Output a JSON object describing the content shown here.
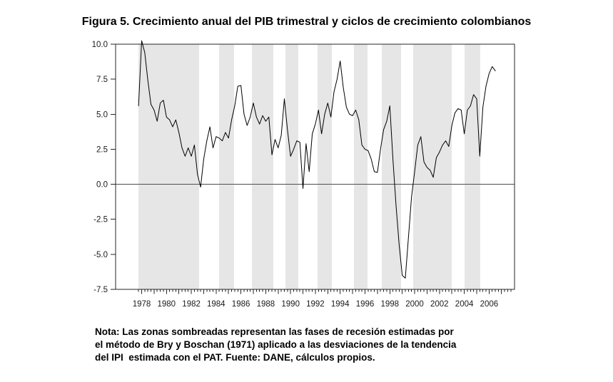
{
  "title": "Figura 5. Crecimiento anual del PIB trimestral y ciclos de crecimiento colombianos",
  "note_lines": [
    "Nota: Las zonas sombreadas representan las fases de recesión estimadas por",
    "el método de Bry y Boschan (1971) aplicado a las desviaciones de la tendencia",
    "del IPI  estimada con el PAT. Fuente: DANE, cálculos propios."
  ],
  "chart_data": {
    "type": "line",
    "title": "Crecimiento anual del PIB trimestral y ciclos de crecimiento colombianos",
    "series_name": "Crecimiento anual del PIB trimestral (%)",
    "x_unit": "trimestre (año decimal)",
    "x_start": 1977.75,
    "x_step": 0.25,
    "values": [
      5.6,
      10.25,
      9.4,
      7.4,
      5.7,
      5.3,
      4.5,
      5.8,
      6.0,
      4.8,
      4.6,
      4.1,
      4.6,
      3.7,
      2.6,
      2.0,
      2.6,
      2.0,
      2.8,
      0.7,
      -0.2,
      1.8,
      3.1,
      4.1,
      2.6,
      3.4,
      3.3,
      3.1,
      3.7,
      3.3,
      4.6,
      5.6,
      7.0,
      7.05,
      5.0,
      4.2,
      4.8,
      5.8,
      4.8,
      4.3,
      4.9,
      4.5,
      4.8,
      2.1,
      3.2,
      2.6,
      3.5,
      6.1,
      3.9,
      2.0,
      2.5,
      3.1,
      3.0,
      -0.3,
      2.9,
      0.9,
      3.6,
      4.3,
      5.3,
      3.6,
      5.0,
      5.8,
      4.8,
      6.6,
      7.5,
      8.8,
      6.9,
      5.5,
      5.0,
      4.9,
      5.3,
      4.6,
      2.8,
      2.5,
      2.4,
      1.8,
      0.9,
      0.85,
      2.5,
      3.9,
      4.5,
      5.6,
      1.8,
      -1.5,
      -4.3,
      -6.5,
      -6.7,
      -3.8,
      -0.9,
      0.9,
      2.8,
      3.4,
      1.6,
      1.2,
      1.0,
      0.5,
      1.9,
      2.3,
      2.8,
      3.1,
      2.7,
      4.2,
      5.1,
      5.4,
      5.3,
      3.6,
      5.3,
      5.6,
      6.4,
      6.1,
      2.0,
      5.5,
      7.0,
      7.9,
      8.4,
      8.1
    ],
    "xlim": [
      1975.9,
      2008.05
    ],
    "ylim": [
      -7.5,
      10.0
    ],
    "yticks": [
      10.0,
      7.5,
      5.0,
      2.5,
      0.0,
      -2.5,
      -5.0,
      -7.5
    ],
    "ytick_labels": [
      "10.0",
      "7.5",
      "5.0",
      "2.5",
      "0.0",
      "-2.5",
      "-5.0",
      "-7.5"
    ],
    "xtick_labels": [
      "1978",
      "1980",
      "1982",
      "1984",
      "1986",
      "1988",
      "1990",
      "1992",
      "1994",
      "1996",
      "1998",
      "2000",
      "2002",
      "2004",
      "2006"
    ],
    "xtick_label_start_year": 1978,
    "xtick_label_step_years": 2,
    "minor_tick_start": 1977.75,
    "minor_tick_end": 2007.75,
    "minor_tick_step": 0.25,
    "zero_line": true,
    "grid": false,
    "legend": false,
    "recession_bands": [
      [
        1977.74,
        1982.63
      ],
      [
        1984.24,
        1985.45
      ],
      [
        1986.88,
        1988.61
      ],
      [
        1989.59,
        1990.62
      ],
      [
        1992.17,
        1993.32
      ],
      [
        1995.11,
        1996.2
      ],
      [
        1997.35,
        1998.9
      ],
      [
        1999.88,
        2002.99
      ],
      [
        2004.03,
        2005.29
      ]
    ],
    "colors": {
      "band": "#e6e6e6",
      "line": "#000000",
      "zero_line": "#4d4d4d",
      "frame": "#262626",
      "tick": "#262626",
      "tick_text": "#1a1a1a",
      "background": "#ffffff"
    }
  }
}
